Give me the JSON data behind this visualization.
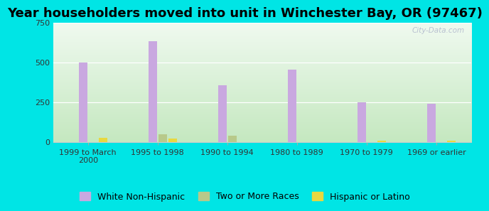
{
  "title": "Year householders moved into unit in Winchester Bay, OR (97467)",
  "categories": [
    "1999 to March\n2000",
    "1995 to 1998",
    "1990 to 1994",
    "1980 to 1989",
    "1970 to 1979",
    "1969 or earlier"
  ],
  "series": {
    "White Non-Hispanic": [
      500,
      635,
      360,
      455,
      253,
      242
    ],
    "Two or More Races": [
      0,
      48,
      40,
      0,
      0,
      0
    ],
    "Hispanic or Latino": [
      30,
      22,
      0,
      0,
      8,
      8
    ]
  },
  "colors": {
    "White Non-Hispanic": "#c9a8e0",
    "Two or More Races": "#b8c98a",
    "Hispanic or Latino": "#e8d840"
  },
  "ylim": [
    0,
    750
  ],
  "yticks": [
    0,
    250,
    500,
    750
  ],
  "bar_width": 0.12,
  "background_outer": "#00e5e5",
  "title_fontsize": 13,
  "tick_fontsize": 8,
  "legend_fontsize": 9,
  "watermark": "City-Data.com"
}
